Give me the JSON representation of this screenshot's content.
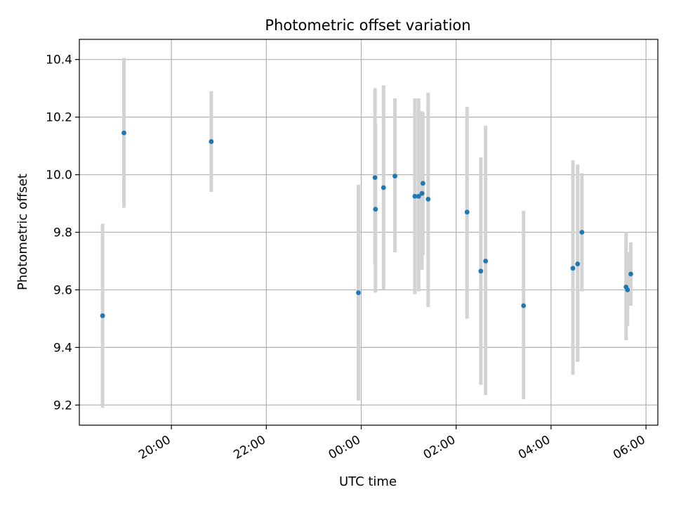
{
  "chart_data": {
    "type": "scatter",
    "title": "Photometric offset variation",
    "xlabel": "UTC time",
    "ylabel": "Photometric offset",
    "x_ticks": [
      "20:00",
      "22:00",
      "00:00",
      "02:00",
      "04:00",
      "06:00"
    ],
    "y_ticks": [
      "9.2",
      "9.4",
      "9.6",
      "9.8",
      "10.0",
      "10.2",
      "10.4"
    ],
    "x_tick_hours": [
      20,
      22,
      24,
      26,
      28,
      30
    ],
    "y_tick_values": [
      9.2,
      9.4,
      9.6,
      9.8,
      10.0,
      10.2,
      10.4
    ],
    "xlim_hours": [
      18.06,
      30.25
    ],
    "ylim": [
      9.13,
      10.47
    ],
    "grid": true,
    "errorbar_color": "#d3d3d3",
    "marker_color": "#1f77b4",
    "series": [
      {
        "points": [
          {
            "t": 18.55,
            "y": 9.51,
            "lo": 9.19,
            "hi": 9.83
          },
          {
            "t": 19.0,
            "y": 10.145,
            "lo": 9.885,
            "hi": 10.405
          },
          {
            "t": 20.84,
            "y": 10.115,
            "lo": 9.94,
            "hi": 10.29
          },
          {
            "t": 23.94,
            "y": 9.59,
            "lo": 9.215,
            "hi": 9.965
          },
          {
            "t": 24.29,
            "y": 9.99,
            "lo": 9.69,
            "hi": 10.3
          },
          {
            "t": 24.3,
            "y": 9.88,
            "lo": 9.59,
            "hi": 10.175
          },
          {
            "t": 24.47,
            "y": 9.955,
            "lo": 9.6,
            "hi": 10.31
          },
          {
            "t": 24.71,
            "y": 9.995,
            "lo": 9.73,
            "hi": 10.265
          },
          {
            "t": 25.13,
            "y": 9.925,
            "lo": 9.585,
            "hi": 10.265
          },
          {
            "t": 25.21,
            "y": 9.925,
            "lo": 9.595,
            "hi": 10.265
          },
          {
            "t": 25.28,
            "y": 9.935,
            "lo": 9.67,
            "hi": 10.22
          },
          {
            "t": 25.3,
            "y": 9.97,
            "lo": 9.72,
            "hi": 10.215
          },
          {
            "t": 25.41,
            "y": 9.915,
            "lo": 9.54,
            "hi": 10.285
          },
          {
            "t": 26.23,
            "y": 9.87,
            "lo": 9.5,
            "hi": 10.235
          },
          {
            "t": 26.52,
            "y": 9.665,
            "lo": 9.27,
            "hi": 10.06
          },
          {
            "t": 26.62,
            "y": 9.7,
            "lo": 9.235,
            "hi": 10.17
          },
          {
            "t": 27.42,
            "y": 9.545,
            "lo": 9.22,
            "hi": 9.875
          },
          {
            "t": 28.46,
            "y": 9.675,
            "lo": 9.305,
            "hi": 10.05
          },
          {
            "t": 28.56,
            "y": 9.69,
            "lo": 9.35,
            "hi": 10.035
          },
          {
            "t": 28.65,
            "y": 9.8,
            "lo": 9.595,
            "hi": 10.005
          },
          {
            "t": 29.58,
            "y": 9.61,
            "lo": 9.425,
            "hi": 9.8
          },
          {
            "t": 29.61,
            "y": 9.6,
            "lo": 9.475,
            "hi": 9.73
          },
          {
            "t": 29.68,
            "y": 9.655,
            "lo": 9.545,
            "hi": 9.765
          }
        ]
      }
    ]
  }
}
